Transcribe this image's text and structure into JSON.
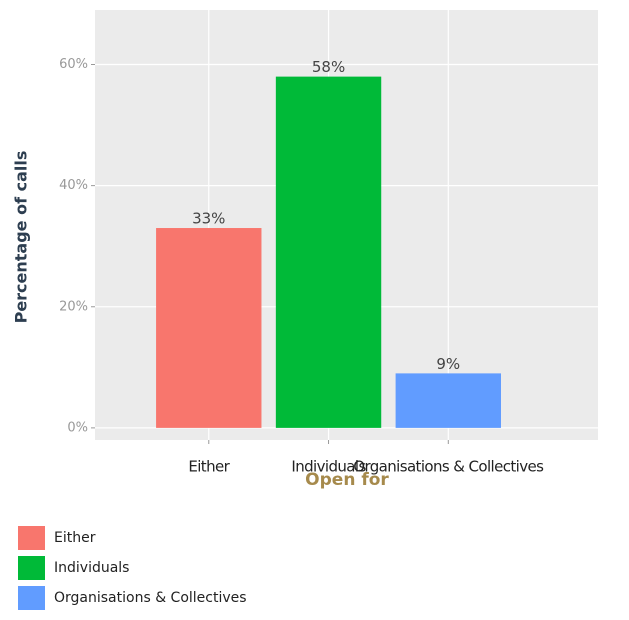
{
  "chart_data": {
    "type": "bar",
    "categories": [
      "Either",
      "Individuals",
      "Organisations & Collectives"
    ],
    "values": [
      33,
      58,
      9
    ],
    "value_labels": [
      "33%",
      "58%",
      "9%"
    ],
    "colors": [
      "#f8766d",
      "#00ba38",
      "#619cff"
    ],
    "x_label": "Open for",
    "y_label": "Percentage of calls",
    "ylim": [
      -2,
      69
    ],
    "yticks": [
      {
        "value": 0,
        "label": "0%"
      },
      {
        "value": 20,
        "label": "20%"
      },
      {
        "value": 40,
        "label": "40%"
      },
      {
        "value": 60,
        "label": "60%"
      }
    ],
    "grid": true,
    "legend": "bottom-left"
  }
}
